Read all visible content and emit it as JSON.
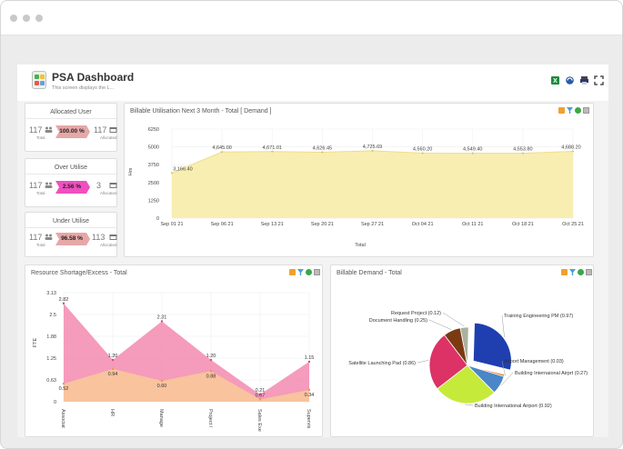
{
  "header": {
    "title": "PSA Dashboard",
    "subtitle": "This screen displays the L..."
  },
  "kpis": [
    {
      "title": "Allocated User",
      "left_value": "117",
      "left_label": "Total",
      "percent": "100.00 %",
      "right_value": "117",
      "right_label": "Allocated",
      "badge_color": "#e6a7a7"
    },
    {
      "title": "Over Utilise",
      "left_value": "117",
      "left_label": "Total",
      "percent": "2.56 %",
      "right_value": "3",
      "right_label": "Allocated",
      "badge_color": "#f04fc0"
    },
    {
      "title": "Under Utilise",
      "left_value": "117",
      "left_label": "Total",
      "percent": "96.58 %",
      "right_value": "113",
      "right_label": "Allocated",
      "badge_color": "#e6a7a7"
    }
  ],
  "billable_utilisation": {
    "title": "Billable Utilisation Next 3 Month - Total [ Demand ]",
    "chart_data": {
      "type": "area",
      "categories": [
        "Sep 01 21",
        "Sep 06 21",
        "Sep 13 21",
        "Sep 20 21",
        "Sep 27 21",
        "Oct 04 21",
        "Oct 11 21",
        "Oct 18 21",
        "Oct 25 21"
      ],
      "values": [
        3166.4,
        4645.0,
        4671.01,
        4626.45,
        4725.69,
        4560.2,
        4549.4,
        4553.8,
        4688.2
      ],
      "data_labels": [
        "3,166.40",
        "4,645.00",
        "4,671.01",
        "4,626.45",
        "4,725.69",
        "4,560.20",
        "4,549.40",
        "4,553.80",
        "4,688.20"
      ],
      "ylabel": "Hrs",
      "xlabel": "Total",
      "yticks": [
        "6250",
        "5000",
        "3750",
        "2500",
        "1250",
        "0"
      ],
      "ylim": [
        0,
        6250
      ],
      "fill": "#f8eeb1",
      "line": "#f0dc88"
    }
  },
  "resource_shortage": {
    "title": "Resource Shortage/Excess - Total",
    "chart_data": {
      "type": "area",
      "categories": [
        "Associate",
        "HR",
        "Manager",
        "Project",
        "Sales Exe",
        "Supervisor"
      ],
      "category_labels": [
        "Associat",
        "HR",
        "Manage",
        "Project /",
        "Sales Exe",
        "Supervis"
      ],
      "series": [
        {
          "values": [
            2.82,
            1.2,
            2.31,
            1.2,
            0.21,
            1.15
          ],
          "labels": [
            "2.82",
            "1.20",
            "2.31",
            "1.20",
            "0.21",
            "1.15"
          ],
          "color": "#f490b4"
        },
        {
          "values": [
            0.52,
            0.94,
            0.6,
            0.88,
            0.07,
            0.34
          ],
          "labels": [
            "0.52",
            "0.94",
            "0.60",
            "0.88",
            "0.07",
            "0.34"
          ],
          "color": "#f8c89a"
        }
      ],
      "ylabel": "FTE",
      "yticks": [
        "3.13",
        "2.5",
        "1.88",
        "1.25",
        "0.63",
        "0"
      ],
      "ylim": [
        0,
        3.13
      ]
    }
  },
  "billable_demand": {
    "title": "Billable Demand - Total",
    "chart_data": {
      "type": "pie",
      "slices": [
        {
          "label": "Training Engineering PM (0.97)",
          "value": 0.97,
          "color": "#1f3fb0"
        },
        {
          "label": "Airport Management (0.03)",
          "value": 0.03,
          "color": "#e07a2a"
        },
        {
          "label": "Building Internaional Airprt (0.27)",
          "value": 0.27,
          "color": "#4a86c8"
        },
        {
          "label": "Building International Airport (0.92)",
          "value": 0.92,
          "color": "#c6ea3a"
        },
        {
          "label": "Satellite Launching Pad (0.86)",
          "value": 0.86,
          "color": "#dc3265"
        },
        {
          "label": "Document Handling (0.25)",
          "value": 0.25,
          "color": "#7a3a12"
        },
        {
          "label": "Request Project (0.12)",
          "value": 0.12,
          "color": "#aab19e"
        }
      ]
    }
  }
}
